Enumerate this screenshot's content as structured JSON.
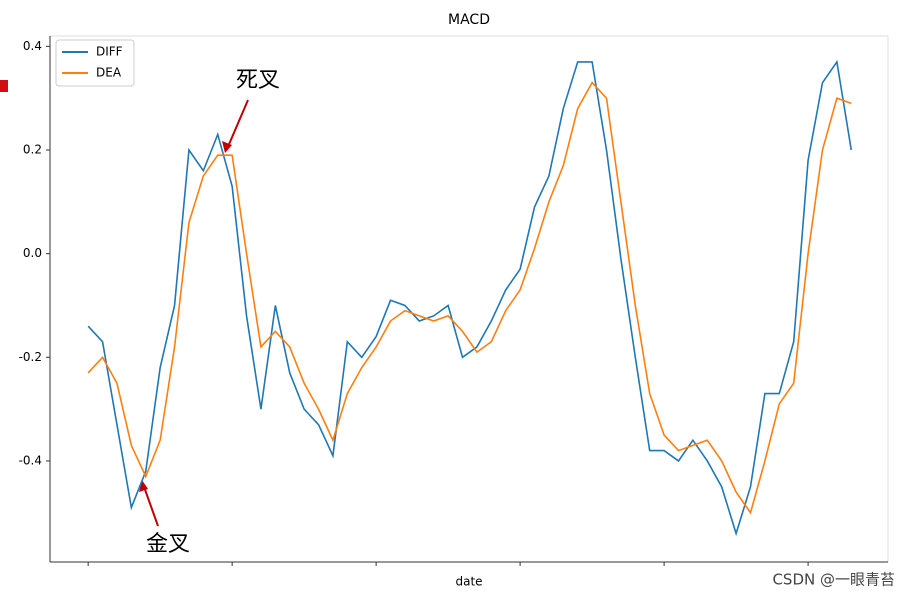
{
  "chart_data": {
    "type": "line",
    "title": "MACD",
    "x_label": "date",
    "x": [
      0,
      2,
      4,
      6,
      8,
      10,
      12,
      14,
      16,
      18,
      20,
      22,
      24,
      26,
      28,
      30,
      32,
      34,
      36,
      38,
      40,
      42,
      44,
      46,
      48,
      50,
      52,
      54,
      56,
      58,
      60,
      62,
      64,
      66,
      68,
      70,
      72,
      74,
      76,
      78,
      80,
      82,
      84,
      86,
      88,
      90,
      92,
      94,
      96,
      98,
      100,
      102,
      104,
      106
    ],
    "xlim": [
      -5.3,
      111.1
    ],
    "xticks": [
      0,
      20,
      40,
      60,
      80,
      100
    ],
    "ylim": [
      -0.595,
      0.42
    ],
    "yticks": [
      0.4,
      0.2,
      {
        "value": 0,
        "label": "0.0"
      },
      -0.2,
      -0.4
    ],
    "legend": "upper left",
    "series": [
      {
        "name": "DIFF",
        "color": "#1f77b4",
        "values": [
          -0.14,
          -0.17,
          -0.33,
          -0.49,
          -0.42,
          -0.22,
          -0.1,
          0.2,
          0.16,
          0.23,
          0.13,
          -0.12,
          -0.3,
          -0.1,
          -0.23,
          -0.3,
          -0.33,
          -0.39,
          -0.17,
          -0.2,
          -0.16,
          -0.09,
          -0.1,
          -0.13,
          -0.12,
          -0.1,
          -0.2,
          -0.18,
          -0.13,
          -0.07,
          -0.03,
          0.09,
          0.15,
          0.28,
          0.37,
          0.37,
          0.2,
          -0.01,
          -0.2,
          -0.38,
          -0.38,
          -0.4,
          -0.36,
          -0.4,
          -0.45,
          -0.54,
          -0.45,
          -0.27,
          -0.27,
          -0.17,
          0.18,
          0.33,
          0.37,
          0.2
        ]
      },
      {
        "name": "DEA",
        "color": "#ff7f0e",
        "values": [
          -0.23,
          -0.2,
          -0.25,
          -0.37,
          -0.43,
          -0.36,
          -0.18,
          0.06,
          0.15,
          0.19,
          0.19,
          0.0,
          -0.18,
          -0.15,
          -0.18,
          -0.25,
          -0.3,
          -0.36,
          -0.27,
          -0.22,
          -0.18,
          -0.13,
          -0.11,
          -0.12,
          -0.13,
          -0.12,
          -0.15,
          -0.19,
          -0.17,
          -0.11,
          -0.07,
          0.01,
          0.1,
          0.17,
          0.28,
          0.33,
          0.3,
          0.1,
          -0.1,
          -0.27,
          -0.35,
          -0.38,
          -0.37,
          -0.36,
          -0.4,
          -0.46,
          -0.5,
          -0.4,
          -0.29,
          -0.25,
          0.0,
          0.2,
          0.3,
          0.29
        ]
      }
    ],
    "annotations": [
      "死叉",
      "金叉"
    ]
  },
  "watermark": "CSDN @一眼青苔"
}
